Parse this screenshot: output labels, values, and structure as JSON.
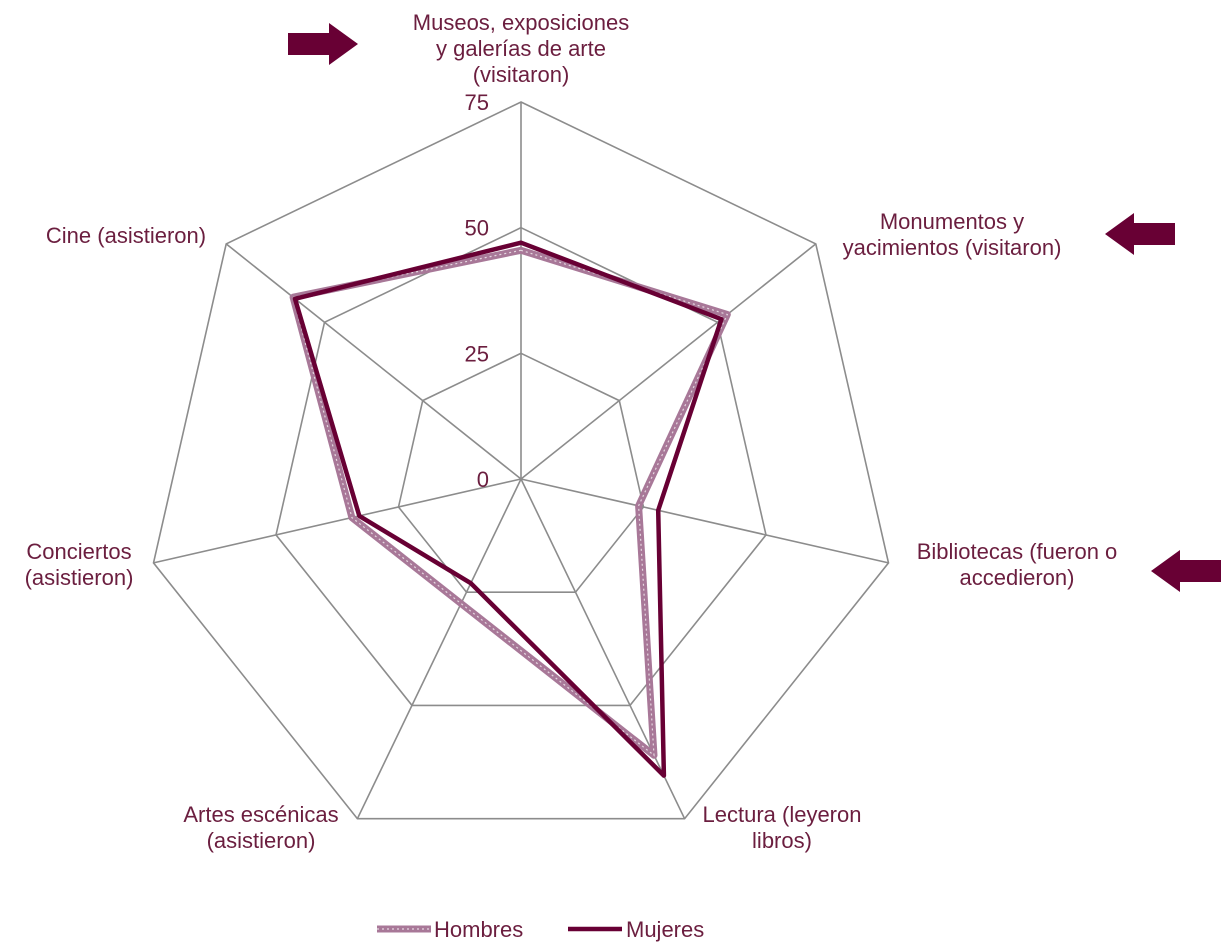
{
  "chart_data": {
    "type": "radar",
    "categories": [
      [
        "Museos, exposiciones",
        "y galerías de arte",
        "(visitaron)"
      ],
      [
        "Monumentos y",
        "yacimientos (visitaron)"
      ],
      [
        "Bibliotecas (fueron o",
        "accedieron)"
      ],
      [
        "Lectura (leyeron",
        "libros)"
      ],
      [
        "Artes escénicas",
        "(asistieron)"
      ],
      [
        "Conciertos",
        "(asistieron)"
      ],
      [
        "Cine (asistieron)"
      ]
    ],
    "series": [
      {
        "name": "Hombres",
        "values": [
          45.5,
          52.5,
          24.0,
          61.0,
          27.5,
          34.5,
          58.0
        ],
        "color": "#a87898"
      },
      {
        "name": "Mujeres",
        "values": [
          47.0,
          51.0,
          28.0,
          65.5,
          23.0,
          33.0,
          57.5
        ],
        "color": "#680034"
      }
    ],
    "ticks": [
      "0",
      "25",
      "50",
      "75"
    ],
    "ylim": [
      0,
      75
    ],
    "grid": true,
    "legend": "bottom",
    "arrows": [
      {
        "axis": 0,
        "direction": "right"
      },
      {
        "axis": 1,
        "direction": "left"
      },
      {
        "axis": 2,
        "direction": "left"
      }
    ],
    "accent_color": "#680034",
    "text_color": "#6b1e3f"
  }
}
